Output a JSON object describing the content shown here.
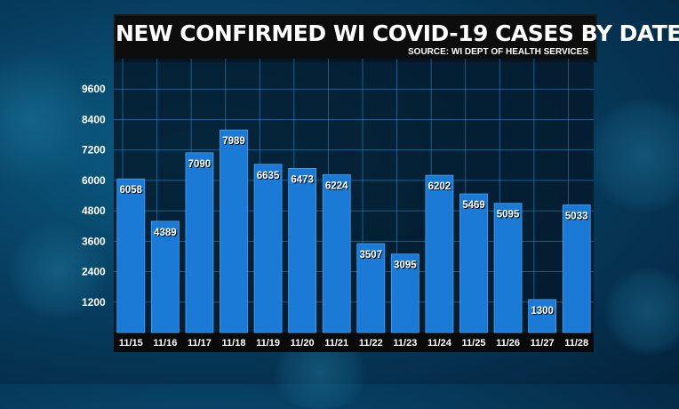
{
  "header": {
    "title": "NEW CONFIRMED WI COVID-19 CASES BY DATE",
    "subtitle": "SOURCE: WI DEPT OF HEALTH SERVICES"
  },
  "colors": {
    "bar": "#1a7ad6",
    "bar_border": "#4aa3f0",
    "grid": "#2f8fd2",
    "label_text": "#ffffff",
    "label_shadow": "#000000"
  },
  "chart_data": {
    "type": "bar",
    "title": "NEW CONFIRMED WI COVID-19 CASES BY DATE",
    "subtitle": "SOURCE: WI DEPT OF HEALTH SERVICES",
    "categories": [
      "11/15",
      "11/16",
      "11/17",
      "11/18",
      "11/19",
      "11/20",
      "11/21",
      "11/22",
      "11/23",
      "11/24",
      "11/25",
      "11/26",
      "11/27",
      "11/28"
    ],
    "values": [
      6058,
      4389,
      7090,
      7989,
      6635,
      6473,
      6224,
      3507,
      3095,
      6202,
      5469,
      5095,
      1300,
      5033
    ],
    "yticks": [
      1200,
      2400,
      3600,
      4800,
      6000,
      7200,
      8400,
      9600
    ],
    "ylim": [
      0,
      10800
    ],
    "grid": true,
    "legend": "none"
  }
}
